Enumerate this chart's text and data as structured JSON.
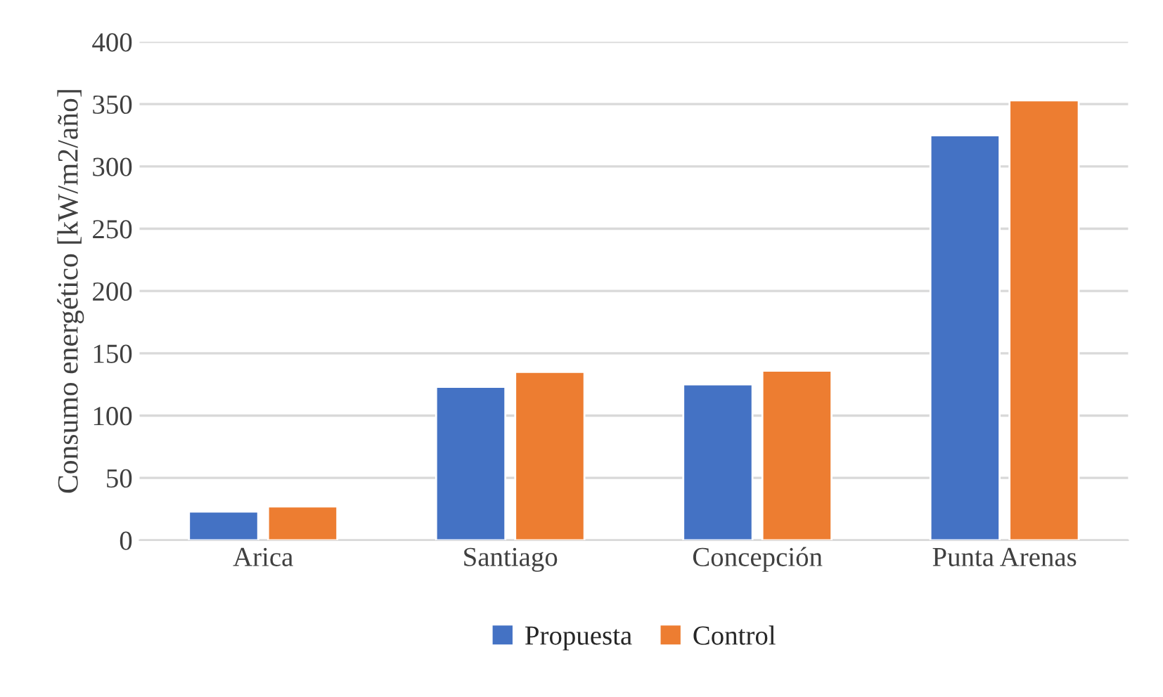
{
  "chart_data": {
    "type": "bar",
    "ylabel": "Consumo energético [kW/m2/año]",
    "categories": [
      "Arica",
      "Santiago",
      "Concepción",
      "Punta Arenas"
    ],
    "series": [
      {
        "name": "Propuesta",
        "color": "#4472c4",
        "values": [
          23,
          123,
          125,
          325
        ]
      },
      {
        "name": "Control",
        "color": "#ed7d31",
        "values": [
          27,
          135,
          136,
          353
        ]
      }
    ],
    "ylim": [
      0,
      400
    ],
    "yticks": [
      0,
      50,
      100,
      150,
      200,
      250,
      300,
      350,
      400
    ],
    "grid": "y",
    "legend": "bottom"
  }
}
